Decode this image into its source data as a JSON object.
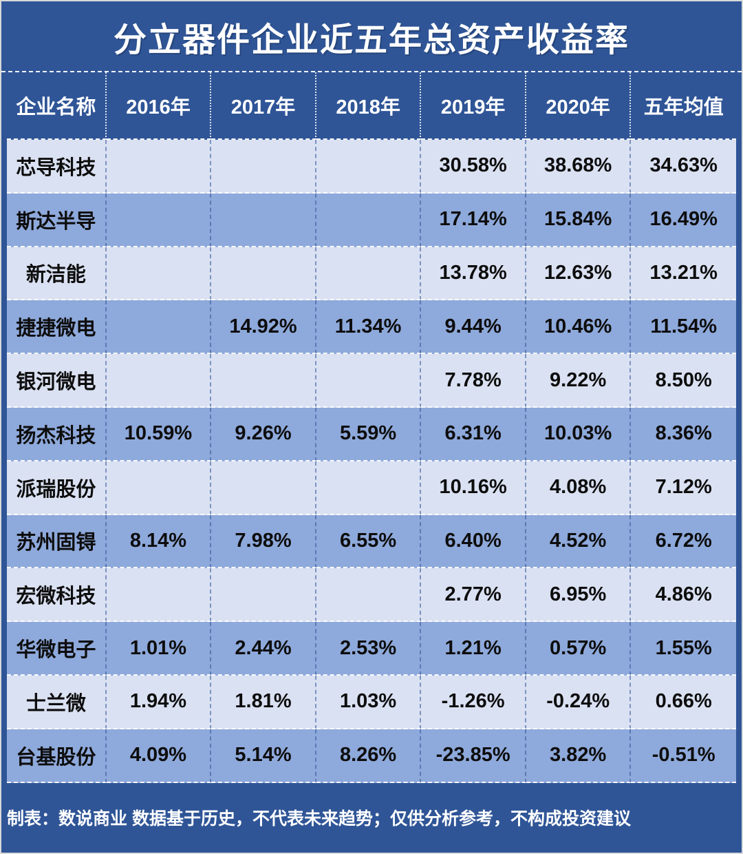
{
  "title": "分立器件企业近五年总资产收益率",
  "colors": {
    "background": "#2F5597",
    "row_light": "#DAE1F2",
    "row_dark": "#8EA9DB",
    "header_text": "#FFFFFF",
    "body_text": "#0D0D0D",
    "grid_horizontal": "#FFFFFF",
    "grid_vertical": "#5C77AE"
  },
  "chart_data": {
    "type": "table",
    "title": "分立器件企业近五年总资产收益率",
    "columns": [
      "企业名称",
      "2016年",
      "2017年",
      "2018年",
      "2019年",
      "2020年",
      "五年均值"
    ],
    "rows": [
      {
        "name": "芯导科技",
        "values": [
          "",
          "",
          "",
          "30.58%",
          "38.68%",
          "34.63%"
        ]
      },
      {
        "name": "斯达半导",
        "values": [
          "",
          "",
          "",
          "17.14%",
          "15.84%",
          "16.49%"
        ]
      },
      {
        "name": "新洁能",
        "values": [
          "",
          "",
          "",
          "13.78%",
          "12.63%",
          "13.21%"
        ]
      },
      {
        "name": "捷捷微电",
        "values": [
          "",
          "14.92%",
          "11.34%",
          "9.44%",
          "10.46%",
          "11.54%"
        ]
      },
      {
        "name": "银河微电",
        "values": [
          "",
          "",
          "",
          "7.78%",
          "9.22%",
          "8.50%"
        ]
      },
      {
        "name": "扬杰科技",
        "values": [
          "10.59%",
          "9.26%",
          "5.59%",
          "6.31%",
          "10.03%",
          "8.36%"
        ]
      },
      {
        "name": "派瑞股份",
        "values": [
          "",
          "",
          "",
          "10.16%",
          "4.08%",
          "7.12%"
        ]
      },
      {
        "name": "苏州固锝",
        "values": [
          "8.14%",
          "7.98%",
          "6.55%",
          "6.40%",
          "4.52%",
          "6.72%"
        ]
      },
      {
        "name": "宏微科技",
        "values": [
          "",
          "",
          "",
          "2.77%",
          "6.95%",
          "4.86%"
        ]
      },
      {
        "name": "华微电子",
        "values": [
          "1.01%",
          "2.44%",
          "2.53%",
          "1.21%",
          "0.57%",
          "1.55%"
        ]
      },
      {
        "name": "士兰微",
        "values": [
          "1.94%",
          "1.81%",
          "1.03%",
          "-1.26%",
          "-0.24%",
          "0.66%"
        ]
      },
      {
        "name": "台基股份",
        "values": [
          "4.09%",
          "5.14%",
          "8.26%",
          "-23.85%",
          "3.82%",
          "-0.51%"
        ]
      }
    ],
    "footnote": "制表：数说商业 数据基于历史，不代表未来趋势；仅供分析参考，不构成投资建议"
  }
}
